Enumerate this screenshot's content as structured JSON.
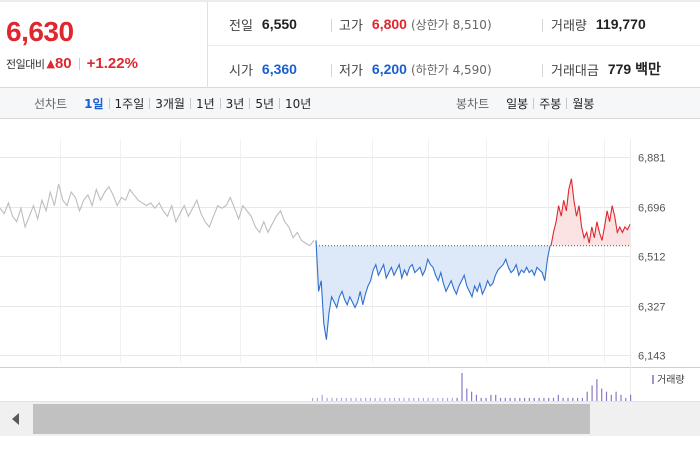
{
  "summary": {
    "price": "6,630",
    "change_label": "전일대비",
    "change_arrow": "▲",
    "change_value": "80",
    "change_pct": "+1.22%",
    "prev_close": {
      "label": "전일",
      "value": "6,550"
    },
    "high": {
      "label": "고가",
      "value": "6,800",
      "sub": "(상한가 8,510)"
    },
    "volume": {
      "label": "거래량",
      "value": "119,770"
    },
    "open": {
      "label": "시가",
      "value": "6,360"
    },
    "low": {
      "label": "저가",
      "value": "6,200",
      "sub": "(하한가 4,590)"
    },
    "amount": {
      "label": "거래대금",
      "value": "779 백만"
    }
  },
  "tabs": {
    "line_label": "선차트",
    "line_items": [
      "1일",
      "1주일",
      "3개월",
      "1년",
      "3년",
      "5년",
      "10년"
    ],
    "line_active": "1일",
    "candle_label": "봉차트",
    "candle_items": [
      "일봉",
      "주봉",
      "월봉"
    ]
  },
  "chart_data": {
    "type": "line",
    "y_ticks": [
      "6,881",
      "6,696",
      "6,512",
      "6,327",
      "6,143"
    ],
    "ylim": [
      6143,
      6881
    ],
    "baseline": 6550,
    "legend": "거래량",
    "colors": {
      "up": "#e0262f",
      "down": "#2f6fd0",
      "prev_day": "#bdbdbd",
      "up_fill": "#fbe3e3",
      "down_fill": "#dde9f8"
    },
    "series": [
      {
        "values": [
          6690,
          6670,
          6710,
          6660,
          6640,
          6690,
          6620,
          6660,
          6700,
          6650,
          6720,
          6680,
          6750,
          6700,
          6780,
          6720,
          6700,
          6750,
          6730,
          6680,
          6720,
          6740,
          6700,
          6760,
          6720,
          6750,
          6770,
          6740,
          6700,
          6730,
          6720,
          6760,
          6740,
          6720,
          6710,
          6700,
          6710,
          6690,
          6710,
          6680,
          6660,
          6700,
          6640,
          6670,
          6700,
          6660,
          6690,
          6720,
          6670,
          6640,
          6620,
          6660,
          6700,
          6690,
          6700,
          6730,
          6690,
          6650,
          6700,
          6680,
          6660,
          6620,
          6600,
          6640,
          6600,
          6630,
          6660,
          6680,
          6640,
          6620,
          6580,
          6600,
          6570,
          6560,
          6550,
          6570
        ]
      },
      {
        "values": [
          6570,
          6380,
          6420,
          6260,
          6200,
          6300,
          6360,
          6340,
          6320,
          6360,
          6380,
          6350,
          6330,
          6360,
          6340,
          6320,
          6340,
          6380,
          6330,
          6370,
          6400,
          6420,
          6460,
          6480,
          6440,
          6460,
          6480,
          6430,
          6450,
          6470,
          6440,
          6460,
          6480,
          6430,
          6460,
          6440,
          6470,
          6480,
          6450,
          6460,
          6470,
          6440,
          6460,
          6500,
          6480,
          6470,
          6440,
          6420,
          6450,
          6410,
          6380,
          6400,
          6420,
          6390,
          6370,
          6400,
          6420,
          6440,
          6400,
          6380,
          6360,
          6400,
          6380,
          6410,
          6370,
          6390,
          6420,
          6400,
          6410,
          6440,
          6460,
          6470,
          6480,
          6500,
          6470,
          6450,
          6460,
          6480,
          6440,
          6460,
          6450,
          6470,
          6450,
          6460,
          6440,
          6470,
          6460,
          6450,
          6420,
          6500,
          6550
        ]
      },
      {
        "values": [
          6550,
          6600,
          6640,
          6700,
          6660,
          6720,
          6680,
          6760,
          6800,
          6720,
          6660,
          6700,
          6620,
          6580,
          6600,
          6560,
          6620,
          6580,
          6640,
          6600,
          6570,
          6620,
          6680,
          6640,
          6700,
          6660,
          6600,
          6620,
          6600,
          6620,
          6610,
          6630
        ]
      }
    ],
    "volume": [
      1,
      1,
      2,
      1,
      1,
      1,
      1,
      1,
      1,
      1,
      1,
      1,
      1,
      1,
      1,
      1,
      1,
      1,
      1,
      1,
      1,
      1,
      1,
      1,
      1,
      1,
      1,
      1,
      1,
      1,
      1,
      9,
      4,
      3,
      2,
      1,
      1,
      2,
      2,
      1,
      1,
      1,
      1,
      1,
      1,
      1,
      1,
      1,
      1,
      1,
      1,
      2,
      1,
      1,
      1,
      1,
      1,
      3,
      5,
      7,
      4,
      3,
      2,
      3,
      2,
      1,
      2
    ]
  }
}
